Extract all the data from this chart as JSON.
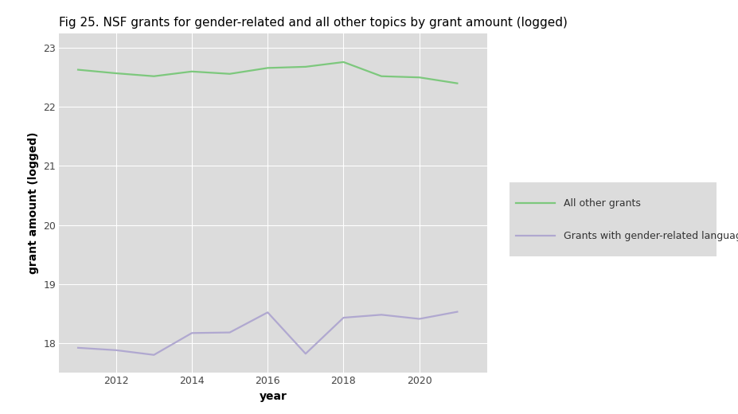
{
  "title": "Fig 25. NSF grants for gender-related and all other topics by grant amount (logged)",
  "xlabel": "year",
  "ylabel": "grant amount (logged)",
  "background_color": "#ffffff",
  "plot_bg_color": "#dcdcdc",
  "years": [
    2011,
    2012,
    2013,
    2014,
    2015,
    2016,
    2017,
    2018,
    2019,
    2020,
    2021
  ],
  "all_other_grants": [
    22.63,
    22.57,
    22.52,
    22.6,
    22.56,
    22.66,
    22.68,
    22.76,
    22.52,
    22.5,
    22.4
  ],
  "gender_grants": [
    17.92,
    17.88,
    17.8,
    18.17,
    18.18,
    18.52,
    17.82,
    18.43,
    18.48,
    18.41,
    18.53
  ],
  "green_color": "#7DC87D",
  "purple_color": "#b0a8d0",
  "ylim_min": 17.5,
  "ylim_max": 23.25,
  "xlim_min": 2010.5,
  "xlim_max": 2021.8,
  "yticks": [
    18,
    19,
    20,
    21,
    22,
    23
  ],
  "xticks": [
    2012,
    2014,
    2016,
    2018,
    2020
  ],
  "legend_labels": [
    "All other grants",
    "Grants with gender-related language"
  ],
  "title_fontsize": 11,
  "axis_label_fontsize": 10,
  "tick_fontsize": 9,
  "line_width": 1.6,
  "legend_box_color": "#dcdcdc"
}
